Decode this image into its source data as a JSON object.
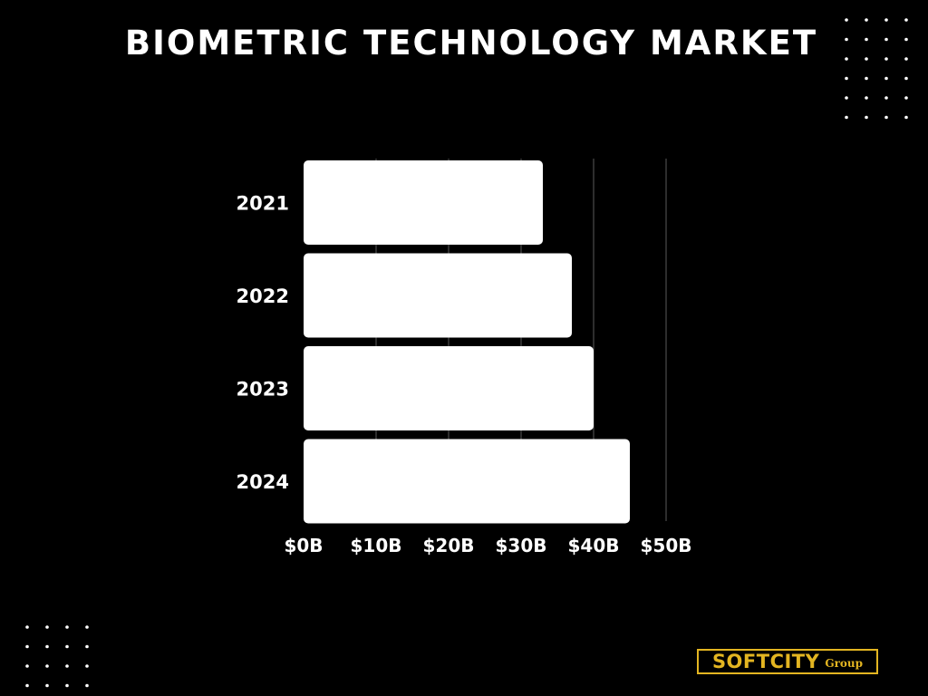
{
  "title": "BIOMETRIC TECHNOLOGY MARKET",
  "chart_data": {
    "type": "bar",
    "orientation": "horizontal",
    "title": "BIOMETRIC TECHNOLOGY MARKET",
    "categories": [
      "2021",
      "2022",
      "2023",
      "2024"
    ],
    "values": [
      33,
      37,
      40,
      45
    ],
    "unit": "B USD",
    "xlim": [
      0,
      50
    ],
    "xticks": [
      0,
      10,
      20,
      30,
      40,
      50
    ],
    "xtick_labels": [
      "$0B",
      "$10B",
      "$20B",
      "$30B",
      "$40B",
      "$50B"
    ],
    "xlabel": "",
    "ylabel": "",
    "grid": "vertical",
    "bar_color": "#ffffff",
    "background": "#000000"
  },
  "brand": {
    "name": "SOFTCITY",
    "suffix": "Group",
    "color": "#e3b521"
  }
}
